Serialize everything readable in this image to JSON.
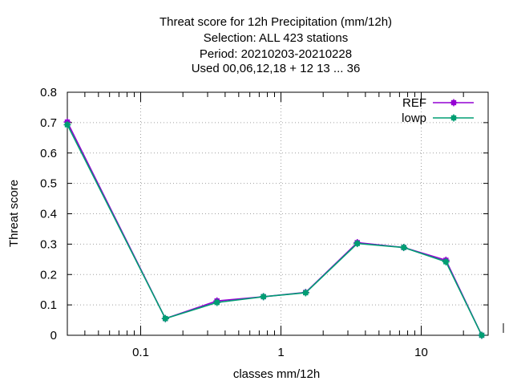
{
  "chart_data": {
    "type": "line",
    "title_lines": [
      "Threat score  for 12h Precipitation (mm/12h)",
      "Selection: ALL     423 stations",
      "Period: 20210203-20210228",
      "Used  00,06,12,18  + 12 13 ... 36"
    ],
    "xlabel": "classes mm/12h",
    "ylabel": "Threat score",
    "x_scale": "log",
    "xlim": [
      0.03,
      30
    ],
    "ylim": [
      0,
      0.8
    ],
    "x_ticks": [
      {
        "value": 0.1,
        "label": "0.1"
      },
      {
        "value": 1,
        "label": "1"
      },
      {
        "value": 10,
        "label": "10"
      }
    ],
    "y_ticks": [
      {
        "value": 0,
        "label": "0"
      },
      {
        "value": 0.1,
        "label": "0.1"
      },
      {
        "value": 0.2,
        "label": "0.2"
      },
      {
        "value": 0.3,
        "label": "0.3"
      },
      {
        "value": 0.4,
        "label": "0.4"
      },
      {
        "value": 0.5,
        "label": "0.5"
      },
      {
        "value": 0.6,
        "label": "0.6"
      },
      {
        "value": 0.7,
        "label": "0.7"
      },
      {
        "value": 0.8,
        "label": "0.8"
      }
    ],
    "grid": true,
    "legend_position": "top-right",
    "x": [
      0.03,
      0.15,
      0.35,
      0.75,
      1.5,
      3.5,
      7.5,
      15,
      27
    ],
    "series": [
      {
        "name": "REF",
        "color": "#9400d3",
        "values": [
          0.702,
          0.055,
          0.113,
          0.127,
          0.141,
          0.305,
          0.289,
          0.247,
          0.0
        ]
      },
      {
        "name": "lowp",
        "color": "#009e73",
        "values": [
          0.693,
          0.055,
          0.108,
          0.127,
          0.14,
          0.302,
          0.289,
          0.242,
          0.0
        ]
      }
    ]
  }
}
